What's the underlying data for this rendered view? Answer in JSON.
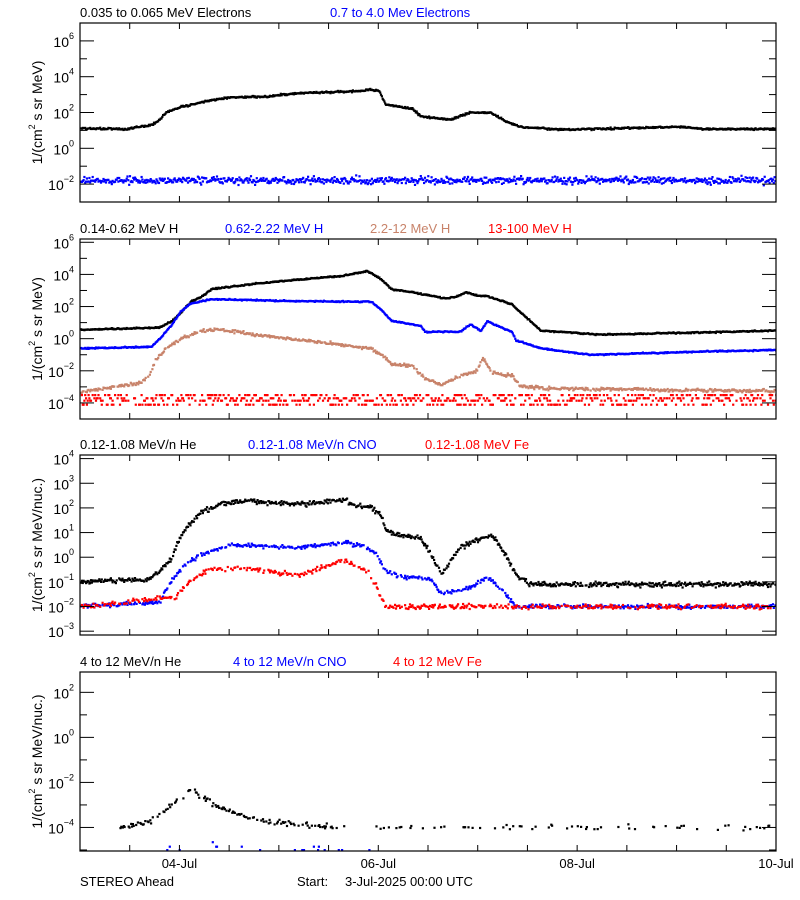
{
  "x_axis": {
    "start": "2025-07-03T00:00",
    "end": "2025-07-10T00:00",
    "tick_labels": [
      {
        "label": "04-Jul",
        "date": "07-04T00:00"
      },
      {
        "label": "06-Jul",
        "date": "07-06T00:00"
      },
      {
        "label": "08-Jul",
        "date": "07-08T00:00"
      },
      {
        "label": "10-Jul",
        "date": "07-10T00:00"
      }
    ],
    "minor_tick_hours": 12
  },
  "footer": {
    "spacecraft": "STEREO Ahead",
    "start_label": "Start:",
    "start_value": "3-Jul-2025 00:00 UTC"
  },
  "chart_data": [
    {
      "type": "scatter",
      "yscale": "log",
      "ylabel": {
        "pre": "1/(cm",
        "sup": "2",
        "post": " s sr MeV)"
      },
      "ylim": [
        0.001,
        10000000.0
      ],
      "ytick_exponents": [
        6,
        4,
        2,
        0,
        -2
      ],
      "yminor_exponents": [
        7,
        5,
        3,
        1,
        -1
      ],
      "grid": false,
      "series": [
        {
          "name": "0.035 to 0.065 MeV Electrons",
          "color": "#000000",
          "points": [
            [
              "07-03T00:00",
              13
            ],
            [
              "07-03T11:00",
              12
            ],
            [
              "07-03T17:00",
              20
            ],
            [
              "07-03T19:00",
              40
            ],
            [
              "07-03T20:30",
              100
            ],
            [
              "07-04T00:00",
              200
            ],
            [
              "07-04T04:00",
              320
            ],
            [
              "07-04T07:30",
              500
            ],
            [
              "07-04T12:00",
              700
            ],
            [
              "07-04T22:00",
              800
            ],
            [
              "07-05T00:00",
              1000
            ],
            [
              "07-05T07:30",
              1300
            ],
            [
              "07-05T19:30",
              1600
            ],
            [
              "07-05T22:00",
              2000
            ],
            [
              "07-06T00:00",
              1600
            ],
            [
              "07-06T01:30",
              280
            ],
            [
              "07-06T08:00",
              160
            ],
            [
              "07-06T10:00",
              63
            ],
            [
              "07-06T17:00",
              40
            ],
            [
              "07-06T22:00",
              100
            ],
            [
              "07-07T03:00",
              100
            ],
            [
              "07-07T06:30",
              32
            ],
            [
              "07-07T10:00",
              16
            ],
            [
              "07-07T20:00",
              11
            ],
            [
              "07-09T01:00",
              16
            ],
            [
              "07-09T06:00",
              12
            ],
            [
              "07-10T00:00",
              12
            ]
          ]
        },
        {
          "name": "0.7 to 4.0 Mev Electrons",
          "color": "#0000ff",
          "points": [
            [
              "07-03T00:00",
              0.016
            ],
            [
              "07-10T00:00",
              0.016
            ]
          ]
        }
      ]
    },
    {
      "type": "scatter",
      "yscale": "log",
      "ylabel": {
        "pre": "1/(cm",
        "sup": "2",
        "post": " s sr MeV)"
      },
      "ylim": [
        1e-05,
        1600000.0
      ],
      "ytick_exponents": [
        6,
        4,
        2,
        0,
        -2,
        -4
      ],
      "yminor_exponents": [
        5,
        3,
        1,
        -1,
        -3
      ],
      "grid": false,
      "series": [
        {
          "name": "0.14-0.62 MeV H",
          "color": "#000000",
          "points": [
            [
              "07-03T00:00",
              3.6
            ],
            [
              "07-03T19:00",
              5
            ],
            [
              "07-03T22:00",
              13
            ],
            [
              "07-04T00:00",
              40
            ],
            [
              "07-04T02:30",
              200
            ],
            [
              "07-04T05:00",
              400
            ],
            [
              "07-04T07:30",
              1200
            ],
            [
              "07-04T17:00",
              2500
            ],
            [
              "07-05T05:00",
              5000
            ],
            [
              "07-05T15:00",
              8000
            ],
            [
              "07-05T21:00",
              16000
            ],
            [
              "07-06T00:00",
              6300
            ],
            [
              "07-06T03:00",
              1200
            ],
            [
              "07-06T10:00",
              630
            ],
            [
              "07-06T16:00",
              320
            ],
            [
              "07-06T18:30",
              400
            ],
            [
              "07-06T21:00",
              800
            ],
            [
              "07-06T23:30",
              500
            ],
            [
              "07-07T02:00",
              450
            ],
            [
              "07-07T08:00",
              140
            ],
            [
              "07-07T10:00",
              46
            ],
            [
              "07-07T15:00",
              3.2
            ],
            [
              "07-07T20:00",
              2.7
            ],
            [
              "07-08T05:30",
              1.8
            ],
            [
              "07-09T06:00",
              2.5
            ],
            [
              "07-10T00:00",
              3.2
            ]
          ]
        },
        {
          "name": "0.62-2.22 MeV H",
          "color": "#0000ff",
          "points": [
            [
              "07-03T00:00",
              0.25
            ],
            [
              "07-03T17:00",
              0.32
            ],
            [
              "07-03T19:00",
              1
            ],
            [
              "07-03T22:00",
              8
            ],
            [
              "07-04T00:00",
              46
            ],
            [
              "07-04T02:30",
              160
            ],
            [
              "07-04T07:30",
              290
            ],
            [
              "07-05T05:00",
              220
            ],
            [
              "07-05T22:00",
              200
            ],
            [
              "07-06T00:30",
              63
            ],
            [
              "07-06T03:00",
              13
            ],
            [
              "07-06T10:00",
              6.3
            ],
            [
              "07-06T11:00",
              2.7
            ],
            [
              "07-06T19:30",
              2.7
            ],
            [
              "07-06T22:00",
              8
            ],
            [
              "07-07T00:30",
              3
            ],
            [
              "07-07T02:00",
              12
            ],
            [
              "07-07T08:00",
              2.7
            ],
            [
              "07-07T09:00",
              0.8
            ],
            [
              "07-07T15:00",
              0.25
            ],
            [
              "07-08T03:00",
              0.1
            ],
            [
              "07-09T06:00",
              0.16
            ],
            [
              "07-10T00:00",
              0.2
            ]
          ]
        },
        {
          "name": "2.2-12 MeV H",
          "color": "#c8836a",
          "points": [
            [
              "07-03T00:00",
              0.0005
            ],
            [
              "07-03T14:30",
              0.0018
            ],
            [
              "07-03T16:30",
              0.005
            ],
            [
              "07-03T18:00",
              0.045
            ],
            [
              "07-03T20:30",
              0.25
            ],
            [
              "07-04T00:00",
              1
            ],
            [
              "07-04T05:00",
              3.2
            ],
            [
              "07-04T10:00",
              3.6
            ],
            [
              "07-04T19:30",
              1.6
            ],
            [
              "07-05T12:30",
              0.5
            ],
            [
              "07-05T22:00",
              0.25
            ],
            [
              "07-06T00:30",
              0.1
            ],
            [
              "07-06T03:00",
              0.025
            ],
            [
              "07-06T08:00",
              0.02
            ],
            [
              "07-06T11:00",
              0.0035
            ],
            [
              "07-06T15:00",
              0.0013
            ],
            [
              "07-06T19:30",
              0.005
            ],
            [
              "07-06T23:30",
              0.01
            ],
            [
              "07-07T01:00",
              0.063
            ],
            [
              "07-07T03:00",
              0.008
            ],
            [
              "07-07T08:00",
              0.005
            ],
            [
              "07-07T10:00",
              0.0011
            ],
            [
              "07-07T16:00",
              0.0008
            ],
            [
              "07-10T00:00",
              0.00056
            ]
          ]
        },
        {
          "name": "13-100 MeV H",
          "color": "#ff0000",
          "points": [
            [
              "07-03T00:00",
              0.00014
            ],
            [
              "07-10T00:00",
              0.00014
            ]
          ]
        }
      ]
    },
    {
      "type": "scatter",
      "yscale": "log",
      "ylabel": {
        "pre": "1/(cm",
        "sup": "2",
        "post": " s sr MeV/nuc.)"
      },
      "ylim": [
        0.0007,
        14000.0
      ],
      "ytick_exponents": [
        4,
        3,
        2,
        1,
        0,
        -1,
        -2,
        -3
      ],
      "yminor_exponents": [],
      "grid": false,
      "series": [
        {
          "name": "0.12-1.08 MeV/n He",
          "color": "#000000",
          "points": [
            [
              "07-03T00:00",
              0.1
            ],
            [
              "07-03T16:30",
              0.13
            ],
            [
              "07-03T22:00",
              0.9
            ],
            [
              "07-03T23:00",
              3.2
            ],
            [
              "07-04T01:00",
              13
            ],
            [
              "07-04T05:00",
              63
            ],
            [
              "07-04T08:30",
              130
            ],
            [
              "07-04T14:30",
              200
            ],
            [
              "07-05T05:00",
              140
            ],
            [
              "07-05T16:00",
              220
            ],
            [
              "07-05T17:00",
              140
            ],
            [
              "07-05T22:00",
              100
            ],
            [
              "07-06T00:30",
              50
            ],
            [
              "07-06T01:30",
              13
            ],
            [
              "07-06T04:00",
              8
            ],
            [
              "07-06T10:00",
              6.3
            ],
            [
              "07-06T12:30",
              1.3
            ],
            [
              "07-06T15:00",
              0.2
            ],
            [
              "07-06T17:00",
              0.63
            ],
            [
              "07-06T19:30",
              2.5
            ],
            [
              "07-06T23:30",
              5
            ],
            [
              "07-07T03:00",
              8
            ],
            [
              "07-07T05:30",
              2.5
            ],
            [
              "07-07T09:00",
              0.2
            ],
            [
              "07-07T12:30",
              0.08
            ],
            [
              "07-10T00:00",
              0.08
            ]
          ]
        },
        {
          "name": "0.12-1.08 MeV/n CNO",
          "color": "#0000ff",
          "points": [
            [
              "07-03T00:00",
              0.01
            ],
            [
              "07-03T19:00",
              0.015
            ],
            [
              "07-03T20:30",
              0.05
            ],
            [
              "07-03T23:00",
              0.2
            ],
            [
              "07-04T01:00",
              0.5
            ],
            [
              "07-04T05:00",
              1.3
            ],
            [
              "07-04T12:00",
              3.2
            ],
            [
              "07-05T05:00",
              2.5
            ],
            [
              "07-05T16:00",
              4
            ],
            [
              "07-05T19:30",
              2.8
            ],
            [
              "07-05T23:00",
              1.6
            ],
            [
              "07-06T01:30",
              0.32
            ],
            [
              "07-06T04:00",
              0.18
            ],
            [
              "07-06T12:30",
              0.13
            ],
            [
              "07-06T15:00",
              0.032
            ],
            [
              "07-06T22:00",
              0.06
            ],
            [
              "07-07T02:00",
              0.16
            ],
            [
              "07-07T05:30",
              0.05
            ],
            [
              "07-07T09:00",
              0.01
            ],
            [
              "07-10T00:00",
              0.01
            ]
          ]
        },
        {
          "name": "0.12-1.08 MeV Fe",
          "color": "#ff0000",
          "points": [
            [
              "07-03T00:00",
              0.01
            ],
            [
              "07-03T23:00",
              0.025
            ],
            [
              "07-04T02:30",
              0.13
            ],
            [
              "07-04T07:30",
              0.35
            ],
            [
              "07-04T17:00",
              0.35
            ],
            [
              "07-05T05:00",
              0.18
            ],
            [
              "07-05T15:00",
              0.8
            ],
            [
              "07-05T17:00",
              0.6
            ],
            [
              "07-05T21:00",
              0.3
            ],
            [
              "07-05T23:00",
              0.08
            ],
            [
              "07-06T01:30",
              0.01
            ],
            [
              "07-10T00:00",
              0.01
            ]
          ]
        }
      ]
    },
    {
      "type": "scatter",
      "yscale": "log",
      "ylabel": {
        "pre": "1/(cm",
        "sup": "2",
        "post": " s sr MeV/nuc.)"
      },
      "ylim": [
        9e-06,
        800
      ],
      "ytick_exponents": [
        2,
        0,
        -2,
        -4
      ],
      "yminor_exponents": [
        1,
        -1,
        -3,
        -5
      ],
      "grid": false,
      "series": [
        {
          "name": "4 to 12 MeV/n He",
          "color": "#000000",
          "points": [
            [
              "07-03T09:30",
              0.0001
            ],
            [
              "07-03T15:30",
              0.00016
            ],
            [
              "07-03T19:00",
              0.00035
            ],
            [
              "07-03T23:00",
              0.0016
            ],
            [
              "07-04T02:30",
              0.0045
            ],
            [
              "07-04T05:00",
              0.0025
            ],
            [
              "07-04T08:30",
              0.001
            ],
            [
              "07-04T14:30",
              0.00035
            ],
            [
              "07-04T19:30",
              0.0002
            ],
            [
              "07-05T05:00",
              0.00013
            ],
            [
              "07-05T12:30",
              0.0001
            ],
            [
              "07-10T00:00",
              0.0001
            ]
          ]
        },
        {
          "name": "4 to 12 MeV/n CNO",
          "color": "#0000ff",
          "points": [
            [
              "07-03T20:00",
              1e-05
            ],
            [
              "07-06T00:00",
              1e-05
            ]
          ]
        },
        {
          "name": "4 to 12 MeV Fe",
          "color": "#ff0000",
          "points": []
        }
      ]
    }
  ]
}
